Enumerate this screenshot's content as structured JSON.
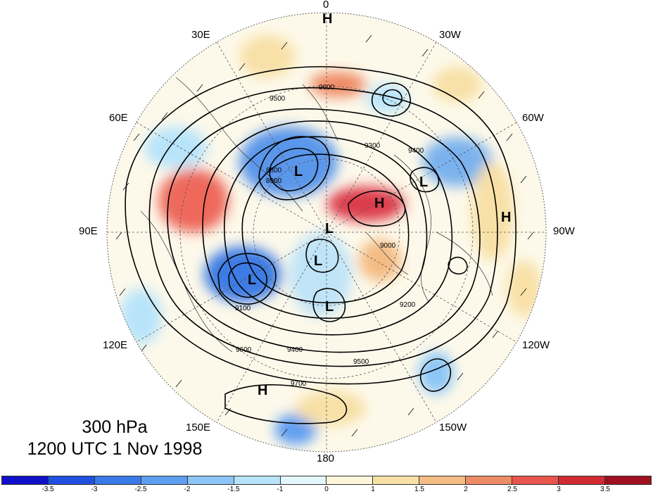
{
  "map": {
    "level_label": "300 hPa",
    "time_label": "1200 UTC 1 Nov 1998",
    "longitude_labels": [
      "0",
      "30W",
      "60W",
      "90W",
      "120W",
      "150W",
      "180",
      "150E",
      "120E",
      "90E",
      "60E",
      "30E"
    ],
    "contour_labels": [
      "9600",
      "9500",
      "9400",
      "9300",
      "9200",
      "9100",
      "9000",
      "8900",
      "8800",
      "9700"
    ],
    "pressure_centers": [
      {
        "type": "H"
      },
      {
        "type": "H"
      },
      {
        "type": "H"
      },
      {
        "type": "H"
      },
      {
        "type": "L"
      },
      {
        "type": "L"
      },
      {
        "type": "L"
      },
      {
        "type": "L"
      },
      {
        "type": "L"
      },
      {
        "type": "L"
      }
    ],
    "colors": {
      "contour": "#000000",
      "grid": "#555555",
      "coast": "#444444"
    }
  },
  "colorbar": {
    "labels": [
      "-3.5",
      "-3",
      "-2.5",
      "-2",
      "-1.5",
      "-1",
      "0",
      "1",
      "1.5",
      "2",
      "2.5",
      "3",
      "3.5"
    ],
    "colors": [
      "#1010c8",
      "#2050e0",
      "#3a7ae8",
      "#5e9ef0",
      "#8cc6f6",
      "#b8e4fa",
      "#e2f6fc",
      "#fdf6dc",
      "#f8e0a6",
      "#f4bc84",
      "#ee8c66",
      "#e8554c",
      "#d02a32",
      "#a01020"
    ]
  }
}
